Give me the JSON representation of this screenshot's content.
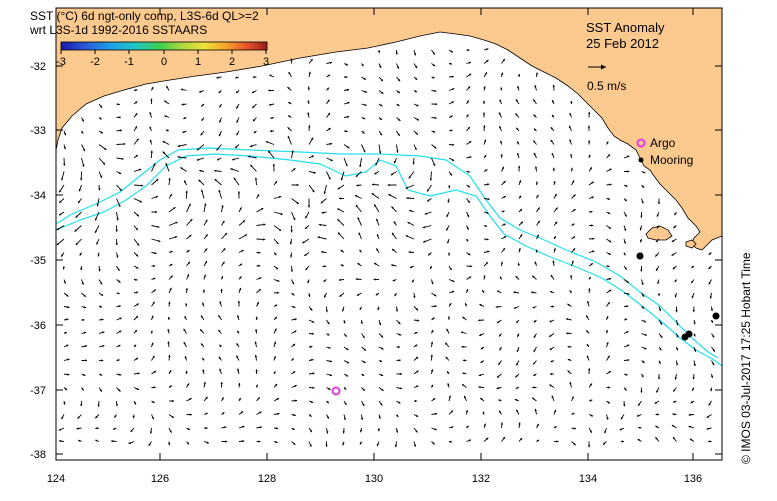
{
  "title": {
    "line1": "SST (°C) 6d ngt-only comp, L3S-6d QL>=2",
    "line2": "wrt L3S-1d 1992-2016 SSTAARS"
  },
  "colorbar": {
    "ticks": [
      "-3",
      "-2",
      "-1",
      "0",
      "1",
      "2",
      "3"
    ],
    "range": [
      -3,
      3
    ],
    "colors": [
      "#1c1aa8",
      "#2a5bd7",
      "#1fa0e6",
      "#22c6c6",
      "#3ecf52",
      "#b6d93b",
      "#f0e33a",
      "#f6a22b",
      "#e8532a",
      "#9a1b1b"
    ]
  },
  "header": {
    "anomaly_label": "SST Anomaly",
    "date": "25 Feb 2012"
  },
  "scale": {
    "label": "0.5 m/s",
    "value_ms": 0.5
  },
  "legend": {
    "argo": "Argo",
    "mooring": "Mooring"
  },
  "colors": {
    "land": "#fcc98f",
    "current_contour": "#22e0ee",
    "argo": "#e838e8",
    "mooring": "#000000"
  },
  "axes": {
    "x_ticks": [
      "124",
      "126",
      "128",
      "130",
      "132",
      "134",
      "136"
    ],
    "y_ticks": [
      "-32",
      "-33",
      "-34",
      "-35",
      "-36",
      "-37",
      "-38"
    ],
    "xlim": [
      124,
      136.5
    ],
    "ylim": [
      -38.1,
      -31.45
    ]
  },
  "markers": {
    "argo": [
      {
        "lon": 129.3,
        "lat": -37.02
      }
    ],
    "moorings": [
      {
        "lon": 135.0,
        "lat": -34.93
      },
      {
        "lon": 135.85,
        "lat": -36.18
      },
      {
        "lon": 135.95,
        "lat": -36.14
      },
      {
        "lon": 136.45,
        "lat": -35.86
      }
    ]
  },
  "credit": "© IMOS 03-Jul-2017 17:25 Hobart Time"
}
